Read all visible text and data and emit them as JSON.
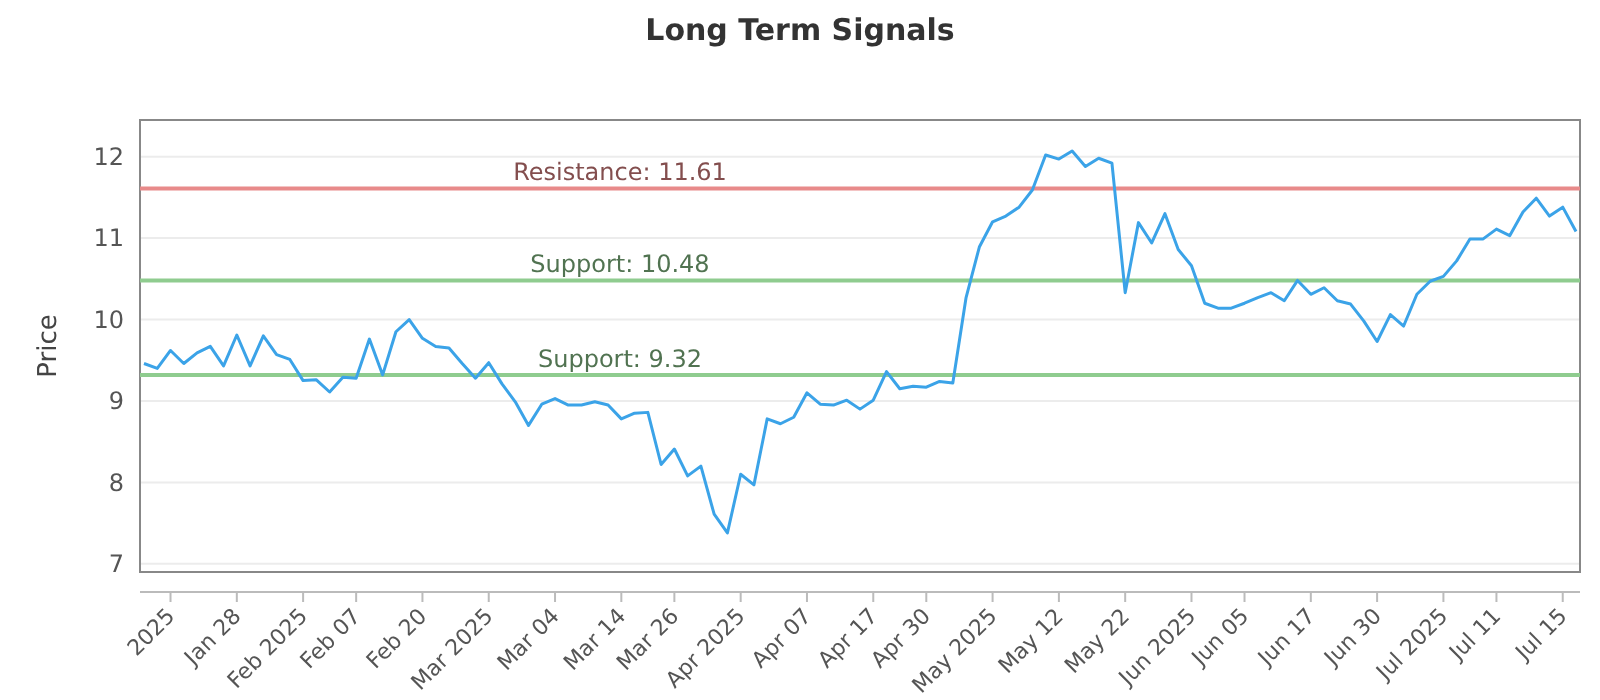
{
  "chart_data": {
    "type": "line",
    "title": "Long Term Signals",
    "ylabel": "Price",
    "categories": [
      null,
      null,
      "2025",
      null,
      null,
      null,
      null,
      "Jan 28",
      null,
      null,
      null,
      null,
      "Feb 2025",
      null,
      null,
      null,
      "Feb 07",
      null,
      null,
      null,
      null,
      "Feb 20",
      null,
      null,
      null,
      null,
      "Mar 2025",
      null,
      null,
      null,
      null,
      "Mar 04",
      null,
      null,
      null,
      null,
      "Mar 14",
      null,
      null,
      null,
      "Mar 26",
      null,
      null,
      null,
      null,
      "Apr 2025",
      null,
      null,
      null,
      null,
      "Apr 07",
      null,
      null,
      null,
      null,
      "Apr 17",
      null,
      null,
      null,
      "Apr 30",
      null,
      null,
      null,
      null,
      "May 2025",
      null,
      null,
      null,
      null,
      "May 12",
      null,
      null,
      null,
      null,
      "May 22",
      null,
      null,
      null,
      null,
      "Jun 2025",
      null,
      null,
      null,
      "Jun 05",
      null,
      null,
      null,
      null,
      "Jun 17",
      null,
      null,
      null,
      null,
      "Jun 30",
      null,
      null,
      null,
      null,
      "Jul 2025",
      null,
      null,
      null,
      "Jul 11",
      null,
      null,
      null,
      null,
      "Jul 15",
      null
    ],
    "series": [
      {
        "color": "#3ba3e8",
        "values": [
          9.46,
          9.4,
          9.62,
          9.46,
          9.59,
          9.67,
          9.43,
          9.81,
          9.43,
          9.8,
          9.57,
          9.51,
          9.25,
          9.26,
          9.11,
          9.29,
          9.28,
          9.76,
          9.32,
          9.85,
          10.0,
          9.77,
          9.67,
          9.65,
          9.46,
          9.28,
          9.47,
          9.21,
          8.99,
          8.7,
          8.96,
          9.03,
          8.95,
          8.95,
          8.99,
          8.95,
          8.78,
          8.85,
          8.86,
          8.22,
          8.41,
          8.08,
          8.2,
          7.61,
          7.38,
          8.1,
          7.97,
          8.78,
          8.72,
          8.8,
          9.1,
          8.96,
          8.95,
          9.01,
          8.9,
          9.01,
          9.36,
          9.15,
          9.18,
          9.17,
          9.24,
          9.22,
          10.27,
          10.89,
          11.2,
          11.27,
          11.38,
          11.59,
          12.02,
          11.97,
          12.07,
          11.88,
          11.98,
          11.92,
          10.33,
          11.19,
          10.94,
          11.3,
          10.86,
          10.66,
          10.2,
          10.14,
          10.14,
          10.2,
          10.27,
          10.33,
          10.23,
          10.48,
          10.31,
          10.39,
          10.23,
          10.19,
          9.98,
          9.73,
          10.06,
          9.92,
          10.31,
          10.47,
          10.53,
          10.72,
          10.99,
          10.99,
          11.11,
          11.03,
          11.32,
          11.49,
          11.27,
          11.38,
          11.08
        ]
      }
    ],
    "ylim": [
      6.9,
      12.45
    ],
    "yticks": [
      7,
      8,
      9,
      10,
      11,
      12
    ],
    "grid": "y",
    "marker": "none",
    "line_style": "solid",
    "ref_lines": [
      {
        "axis": "y",
        "value": 11.61,
        "label": "Resistance: 11.61",
        "color": "#e88a8a"
      },
      {
        "axis": "y",
        "value": 10.48,
        "label": "Support: 10.48",
        "color": "#8fcc8f"
      },
      {
        "axis": "y",
        "value": 9.32,
        "label": "Support: 9.32",
        "color": "#8fcc8f"
      }
    ]
  }
}
